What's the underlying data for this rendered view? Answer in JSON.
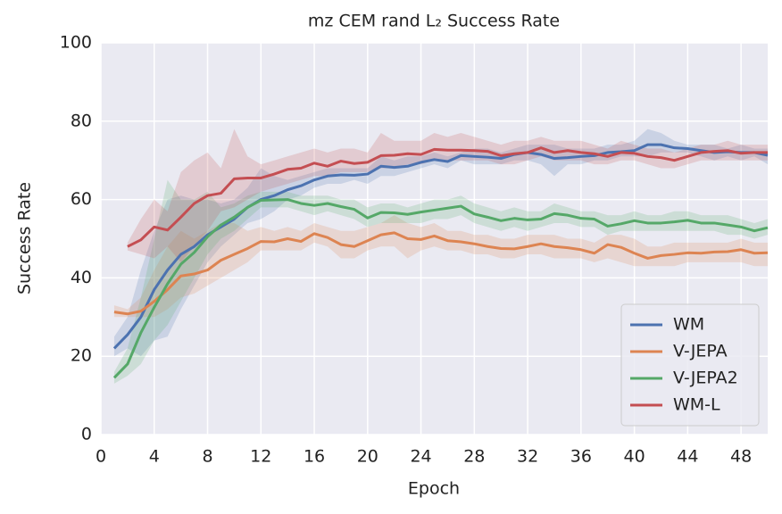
{
  "chart_data": {
    "type": "line",
    "title": "mz CEM rand L₂ Success Rate",
    "x_label": "Epoch",
    "y_label": "Success Rate",
    "x": [
      1,
      2,
      3,
      4,
      5,
      6,
      7,
      8,
      9,
      10,
      11,
      12,
      13,
      14,
      15,
      16,
      17,
      18,
      19,
      20,
      21,
      22,
      23,
      24,
      25,
      26,
      27,
      28,
      29,
      30,
      31,
      32,
      33,
      34,
      35,
      36,
      37,
      38,
      39,
      40,
      41,
      42,
      43,
      44,
      45,
      46,
      47,
      48,
      49,
      50
    ],
    "xlim": [
      0,
      50
    ],
    "xticks": [
      0,
      4,
      8,
      12,
      16,
      20,
      24,
      28,
      32,
      36,
      40,
      44,
      48
    ],
    "ylim": [
      0,
      100
    ],
    "yticks": [
      0,
      20,
      40,
      60,
      80,
      100
    ],
    "grid": true,
    "legend": "lower right",
    "series": [
      {
        "name": "WM",
        "color": "#4c72b0",
        "values": [
          22,
          25.5,
          30,
          37,
          42,
          46,
          48,
          51,
          53,
          55,
          58,
          60,
          61,
          62.5,
          63.5,
          65,
          66,
          66.3,
          66.2,
          66.5,
          68.5,
          68.2,
          68.5,
          69.5,
          70.2,
          69.7,
          71.2,
          71,
          70.8,
          70.5,
          71.5,
          72,
          71.5,
          70.5,
          70.7,
          71,
          71.2,
          72,
          72.2,
          72.5,
          74,
          74,
          73.2,
          73,
          72.5,
          72,
          72.2,
          72,
          72,
          71.3
        ],
        "lower": [
          20,
          22,
          20,
          24,
          25,
          32,
          38,
          44,
          48,
          51,
          54,
          55,
          57,
          60,
          61,
          63,
          64,
          64,
          65,
          64,
          66,
          66,
          67,
          68,
          69,
          68,
          70,
          69,
          69,
          69,
          70,
          70,
          69,
          66,
          69,
          69,
          70,
          70,
          71,
          71,
          71,
          72,
          72,
          72,
          71,
          70,
          71,
          70,
          71,
          69
        ],
        "upper": [
          25,
          30,
          42,
          52,
          60,
          61,
          60,
          60,
          59,
          60,
          63,
          68,
          66,
          65,
          66,
          67,
          68,
          68,
          68,
          68,
          71,
          70,
          71,
          71,
          72,
          71,
          72,
          73,
          73,
          72,
          73,
          74,
          74,
          74,
          73,
          73,
          73,
          74,
          74,
          75,
          78,
          77,
          75,
          74,
          74,
          74,
          73,
          74,
          73,
          73
        ]
      },
      {
        "name": "V-JEPA",
        "color": "#dd8452",
        "values": [
          31.3,
          30.8,
          31.5,
          34,
          37,
          40.5,
          41,
          42,
          44.5,
          46,
          47.5,
          49.3,
          49.2,
          50,
          49.3,
          51.3,
          50.3,
          48.5,
          48,
          49.5,
          51,
          51.5,
          50,
          49.8,
          50.7,
          49.5,
          49.2,
          48.7,
          48,
          47.5,
          47.4,
          48,
          48.7,
          48,
          47.7,
          47.2,
          46.3,
          48.5,
          47.8,
          46.3,
          45,
          45.7,
          46,
          46.4,
          46.3,
          46.6,
          46.7,
          47.2,
          46.3,
          46.4
        ],
        "lower": [
          30,
          30,
          30,
          30,
          32,
          35,
          36,
          38,
          40,
          42,
          44,
          47,
          47,
          47,
          47,
          49,
          48,
          45,
          45,
          47,
          48,
          48,
          45,
          47,
          48,
          47,
          47,
          46,
          46,
          45,
          45,
          46,
          46,
          45,
          45,
          45,
          44,
          45,
          44,
          43,
          43,
          43,
          43,
          44,
          44,
          44,
          44,
          44,
          43,
          43
        ],
        "upper": [
          33,
          32,
          35,
          42,
          48,
          52,
          50,
          52,
          54,
          54,
          52,
          53,
          52,
          53,
          52,
          54,
          53,
          52,
          52,
          53,
          54,
          56,
          54,
          53,
          54,
          52,
          52,
          51,
          51,
          50,
          50,
          51,
          51,
          51,
          50,
          50,
          49,
          51,
          51,
          50,
          48,
          48,
          49,
          49,
          49,
          49,
          49,
          50,
          49,
          49
        ]
      },
      {
        "name": "V-JEPA2",
        "color": "#55a868",
        "values": [
          14.5,
          18,
          26,
          32.5,
          38.5,
          43.5,
          46.5,
          50.5,
          53.5,
          55.5,
          58,
          59.8,
          59.9,
          60,
          59,
          58.5,
          59,
          58.2,
          57.5,
          55.3,
          56.7,
          56.6,
          56.2,
          56.8,
          57.3,
          57.8,
          58.3,
          56.3,
          55.5,
          54.6,
          55.2,
          54.8,
          55,
          56.4,
          56,
          55.2,
          55,
          53.2,
          53.8,
          54.6,
          54,
          54,
          54.3,
          54.7,
          54,
          54,
          53.5,
          53,
          52,
          52.8
        ],
        "lower": [
          13,
          15,
          18,
          24,
          28,
          34,
          40,
          46,
          50,
          52,
          55,
          58,
          58,
          58,
          57,
          56,
          57,
          56,
          55,
          53,
          54,
          54,
          54,
          54,
          55,
          55,
          56,
          54,
          53,
          52,
          53,
          52,
          53,
          54,
          54,
          53,
          53,
          51,
          52,
          52,
          52,
          52,
          52,
          52,
          52,
          52,
          51,
          51,
          50,
          51
        ],
        "upper": [
          16,
          22,
          35,
          50,
          65,
          60,
          60,
          62,
          58,
          59,
          61,
          62,
          62,
          62,
          61,
          61,
          61,
          60,
          60,
          58,
          59,
          59,
          58,
          59,
          60,
          60,
          61,
          59,
          58,
          57,
          58,
          57,
          57,
          59,
          58,
          57,
          57,
          56,
          56,
          57,
          56,
          56,
          57,
          57,
          56,
          56,
          56,
          55,
          54,
          55
        ]
      },
      {
        "name": "WM-L",
        "color": "#c44e52",
        "values": [
          null,
          48,
          49.7,
          53,
          52.2,
          55.5,
          59,
          61,
          61.6,
          65.3,
          65.5,
          65.5,
          66.5,
          67.7,
          68,
          69.3,
          68.5,
          69.8,
          69.2,
          69.5,
          71.2,
          71.3,
          71.7,
          71.5,
          72.8,
          72.6,
          72.6,
          72.5,
          72.3,
          71.2,
          71.7,
          72,
          73.2,
          72,
          72.5,
          72,
          71.7,
          71,
          72,
          71.8,
          71,
          70.7,
          70,
          71,
          72,
          72.3,
          72.5,
          71.8,
          72,
          72
        ],
        "lower": [
          null,
          47,
          46,
          45,
          48,
          44,
          48,
          52,
          57,
          58,
          60,
          62,
          63,
          64,
          65,
          66,
          66,
          67,
          67,
          67,
          68,
          68,
          69,
          69,
          70,
          70,
          70,
          70,
          70,
          69,
          69,
          70,
          71,
          70,
          70,
          70,
          69,
          69,
          70,
          70,
          69,
          68,
          68,
          69,
          70,
          70,
          70,
          70,
          70,
          70
        ],
        "upper": [
          null,
          49,
          55,
          60,
          57,
          67,
          70,
          72,
          68,
          78,
          71,
          69,
          70,
          71,
          72,
          73,
          72,
          73,
          73,
          72,
          77,
          75,
          75,
          75,
          77,
          76,
          77,
          76,
          75,
          74,
          75,
          75,
          76,
          75,
          75,
          75,
          74,
          73,
          75,
          74,
          73,
          73,
          72,
          73,
          74,
          74,
          75,
          74,
          74,
          74
        ]
      }
    ]
  }
}
